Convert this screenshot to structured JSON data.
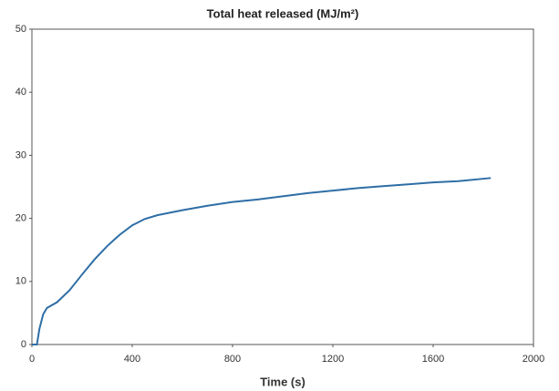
{
  "chart_data": {
    "type": "line",
    "title": "Total heat released (MJ/m²)",
    "x_label": "Time (s)",
    "x": [
      0,
      20,
      30,
      45,
      60,
      100,
      150,
      200,
      250,
      300,
      350,
      400,
      450,
      500,
      600,
      700,
      800,
      900,
      1000,
      1100,
      1200,
      1300,
      1400,
      1500,
      1600,
      1700,
      1830
    ],
    "series": [
      {
        "name": "Total heat released",
        "color": "#2f6ea6",
        "values": [
          0,
          0,
          2.5,
          4.8,
          5.8,
          6.7,
          8.6,
          11.1,
          13.5,
          15.6,
          17.4,
          18.9,
          19.9,
          20.5,
          21.3,
          22,
          22.6,
          23,
          23.5,
          24,
          24.4,
          24.8,
          25.1,
          25.4,
          25.7,
          25.9,
          26.4
        ]
      }
    ],
    "xlim": [
      0,
      2000
    ],
    "xticks": [
      0,
      400,
      800,
      1200,
      1600,
      2000
    ],
    "ylim": [
      0,
      50
    ],
    "yticks": [
      0,
      10,
      20,
      30,
      40,
      50
    ],
    "grid": false
  }
}
